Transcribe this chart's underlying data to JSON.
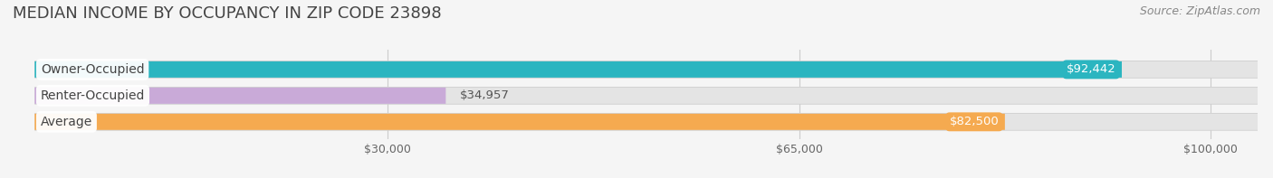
{
  "title": "MEDIAN INCOME BY OCCUPANCY IN ZIP CODE 23898",
  "source": "Source: ZipAtlas.com",
  "categories": [
    "Owner-Occupied",
    "Renter-Occupied",
    "Average"
  ],
  "values": [
    92442,
    34957,
    82500
  ],
  "bar_colors": [
    "#2bb5c0",
    "#c9aad8",
    "#f5aa50"
  ],
  "value_labels": [
    "$92,442",
    "$34,957",
    "$82,500"
  ],
  "x_ticks": [
    30000,
    65000,
    100000
  ],
  "x_tick_labels": [
    "$30,000",
    "$65,000",
    "$100,000"
  ],
  "xmax": 100000,
  "xmin": 0,
  "background_color": "#f5f5f5",
  "bar_bg_color": "#e4e4e4",
  "title_fontsize": 13,
  "source_fontsize": 9,
  "label_fontsize": 10,
  "value_fontsize": 9.5
}
